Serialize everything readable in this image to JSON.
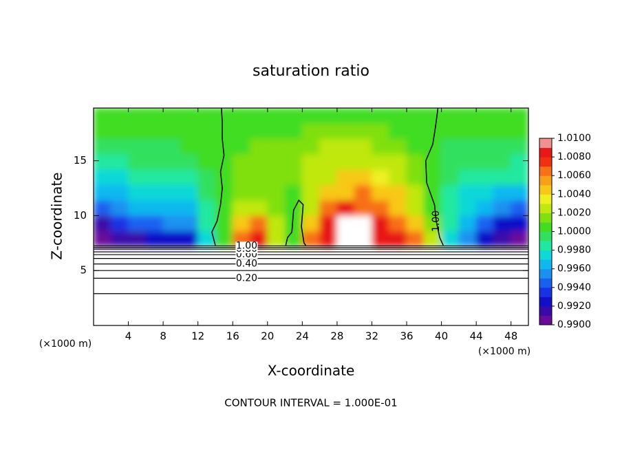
{
  "chart_data": {
    "type": "heatmap",
    "title": "saturation ratio",
    "x_label": "X-coordinate",
    "y_label": "Z-coordinate",
    "x_unit": "(×1000 m)",
    "footer": "CONTOUR INTERVAL = 1.000E-01",
    "xlim": [
      0,
      50
    ],
    "ylim": [
      0,
      19.8
    ],
    "xticks": [
      4,
      8,
      12,
      16,
      20,
      24,
      28,
      32,
      36,
      40,
      44,
      48
    ],
    "yticks": [
      5,
      10,
      15
    ],
    "x_edges": [
      0,
      2,
      4,
      6,
      8,
      10,
      12,
      14,
      16,
      18,
      20,
      22,
      24,
      26,
      28,
      30,
      32,
      34,
      36,
      38,
      40,
      42,
      44,
      46,
      48,
      50
    ],
    "y_edges": [
      7.2,
      8.6,
      10,
      11.4,
      12.8,
      14.2,
      15.6,
      17,
      18.4,
      19.8
    ],
    "values": [
      [
        0.9905,
        0.9915,
        0.9915,
        0.992,
        0.992,
        0.9925,
        0.997,
        1.0005,
        1.007,
        1.009,
        1.003,
        1.0005,
        1.006,
        1.009,
        1.012,
        1.012,
        1.009,
        1.008,
        1.007,
        1.002,
        0.997,
        0.995,
        0.9925,
        0.9915,
        0.9905
      ],
      [
        0.9915,
        0.993,
        0.994,
        0.994,
        0.995,
        0.995,
        0.998,
        1.0005,
        1.005,
        1.007,
        1.002,
        1.0005,
        1.004,
        1.008,
        1.012,
        1.012,
        1.008,
        1.007,
        1.005,
        1.0015,
        0.998,
        0.996,
        0.994,
        0.9925,
        0.992
      ],
      [
        0.994,
        0.995,
        0.996,
        0.996,
        0.9965,
        0.9965,
        0.998,
        1.0005,
        1.002,
        1.003,
        1.0015,
        1.0005,
        1.002,
        1.006,
        1.008,
        1.007,
        1.006,
        1.005,
        1.003,
        1.0005,
        0.998,
        0.997,
        0.996,
        0.995,
        0.994
      ],
      [
        0.996,
        0.9965,
        0.997,
        0.997,
        0.997,
        0.9975,
        0.999,
        1.0005,
        1.0015,
        1.0015,
        1.0015,
        1.0005,
        1.002,
        1.004,
        1.005,
        1.006,
        1.005,
        1.004,
        1.002,
        1.0005,
        0.998,
        0.9975,
        0.997,
        0.9965,
        0.9965
      ],
      [
        0.9975,
        0.9975,
        0.998,
        0.998,
        0.998,
        0.9985,
        0.9995,
        1.0005,
        1.0015,
        1.0015,
        1.0015,
        1.0015,
        1.002,
        1.003,
        1.004,
        1.004,
        1.0035,
        1.003,
        1.0015,
        1.0005,
        0.999,
        0.998,
        0.998,
        0.998,
        0.998
      ],
      [
        0.9985,
        0.9985,
        0.999,
        0.999,
        0.999,
        0.9995,
        1.0005,
        1.0005,
        1.0015,
        1.0015,
        1.0015,
        1.0015,
        1.002,
        1.0025,
        1.003,
        1.003,
        1.003,
        1.002,
        1.0015,
        1.0005,
        0.999,
        0.999,
        0.999,
        0.999,
        0.9985
      ],
      [
        0.9995,
        0.9995,
        0.9995,
        0.9995,
        0.9995,
        1.0005,
        1.0005,
        1.0005,
        1.0005,
        1.0015,
        1.0015,
        1.0015,
        1.0015,
        1.002,
        1.002,
        1.002,
        1.0015,
        1.0015,
        1.0005,
        1.0005,
        0.9995,
        0.9995,
        0.9995,
        0.9995,
        0.9995
      ],
      [
        1.0005,
        1.0005,
        1.0005,
        1.0005,
        1.0005,
        1.0005,
        1.0005,
        1.0005,
        1.0005,
        1.0005,
        1.0005,
        1.0005,
        1.0015,
        1.0015,
        1.0015,
        1.0015,
        1.0015,
        1.0005,
        1.0005,
        1.0005,
        1.0005,
        1.0005,
        1.0005,
        1.0005,
        1.0005
      ],
      [
        1.0005,
        1.0005,
        1.0005,
        1.0005,
        1.0005,
        1.0005,
        1.0005,
        1.0005,
        1.0005,
        1.0005,
        1.0005,
        1.0005,
        1.0005,
        1.0005,
        1.0005,
        1.0005,
        1.0005,
        1.0005,
        1.0005,
        1.0005,
        1.0005,
        1.0005,
        1.0005,
        1.0005,
        1.0005
      ]
    ],
    "clim": [
      0.99,
      1.01
    ],
    "colors": [
      "#6a0a9a",
      "#3a0aa8",
      "#1010c8",
      "#1a30e6",
      "#1a60f0",
      "#1a90f0",
      "#10b8f0",
      "#10d8d8",
      "#20e8a0",
      "#30e060",
      "#40dd20",
      "#80e010",
      "#c0e810",
      "#f0f020",
      "#f8c818",
      "#f8a018",
      "#f87018",
      "#f03010",
      "#e81818",
      "#f09090"
    ],
    "colorbar_ticks": [
      {
        "value": 0.99,
        "label": "0.9900"
      },
      {
        "value": 0.992,
        "label": "0.9920"
      },
      {
        "value": 0.994,
        "label": "0.9940"
      },
      {
        "value": 0.996,
        "label": "0.9960"
      },
      {
        "value": 0.998,
        "label": "0.9980"
      },
      {
        "value": 1.0,
        "label": "1.0000"
      },
      {
        "value": 1.002,
        "label": "1.0020"
      },
      {
        "value": 1.004,
        "label": "1.0040"
      },
      {
        "value": 1.006,
        "label": "1.0060"
      },
      {
        "value": 1.008,
        "label": "1.0080"
      },
      {
        "value": 1.01,
        "label": "1.0100"
      }
    ],
    "contours": [
      {
        "value": 0.1,
        "z": 2.9
      },
      {
        "value": 0.2,
        "label": "0.20",
        "z": 4.3
      },
      {
        "value": 0.3,
        "z": 5.0
      },
      {
        "value": 0.4,
        "label": "0.40",
        "z": 5.6
      },
      {
        "value": 0.5,
        "z": 6.1
      },
      {
        "value": 0.6,
        "label": "0.60",
        "z": 6.45
      },
      {
        "value": 0.7,
        "z": 6.7
      },
      {
        "value": 0.8,
        "label": "0.80",
        "z": 6.95
      },
      {
        "value": 0.9,
        "z": 7.1
      },
      {
        "value": 1.0,
        "label": "1.00",
        "z": 7.25
      }
    ],
    "contour_lines": [
      {
        "value": 1.0,
        "x": [
          14.0,
          13.6,
          14.2,
          14.6,
          14.8,
          14.6,
          15.0,
          14.8,
          14.8,
          14.7
        ],
        "y": [
          7.3,
          8.5,
          9.5,
          11,
          12.5,
          14,
          15.5,
          17,
          18.5,
          19.8
        ]
      },
      {
        "value": 1.0,
        "label": "1.00",
        "x": [
          40.2,
          39.8,
          39.4,
          39.2,
          38.3,
          38.2,
          39.0,
          39.3,
          39.6
        ],
        "y": [
          7.3,
          8,
          9.5,
          11,
          13,
          15,
          16.5,
          18,
          19.8
        ]
      },
      {
        "value": 1.0,
        "x": [
          22.1,
          22.3,
          22.8,
          23.0,
          23.6,
          24.1,
          23.9,
          24.2,
          24.4
        ],
        "y": [
          7.3,
          8.0,
          8.5,
          10.5,
          11.4,
          11.0,
          9.0,
          7.5,
          7.3
        ]
      }
    ]
  }
}
